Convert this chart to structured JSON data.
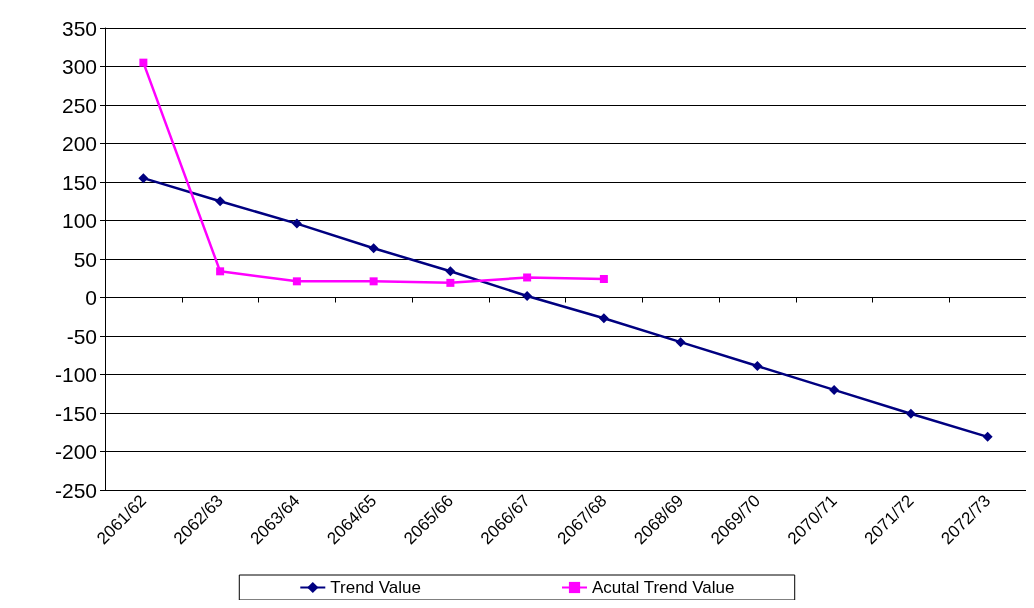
{
  "chart_data": {
    "type": "line",
    "categories": [
      "2061/62",
      "2062/63",
      "2063/64",
      "2064/65",
      "2065/66",
      "2066/67",
      "2067/68",
      "2068/69",
      "2069/70",
      "2070/71",
      "2071/72",
      "2072/73"
    ],
    "series": [
      {
        "name": "Trend Value",
        "color": "#000080",
        "marker": "diamond",
        "values": [
          155,
          125,
          96,
          64,
          34,
          2,
          -27,
          -58,
          -89,
          -120,
          -151,
          -181
        ]
      },
      {
        "name": "Acutal Trend Value",
        "color": "#ff00ff",
        "marker": "square",
        "values": [
          305,
          34,
          21,
          21,
          19,
          26,
          24,
          null,
          null,
          null,
          null,
          null
        ]
      }
    ],
    "ylim": [
      -250,
      350
    ],
    "yticks": [
      -250,
      -200,
      -150,
      -100,
      -50,
      0,
      50,
      100,
      150,
      200,
      250,
      300,
      350
    ],
    "grid": "y",
    "legend": "bottom",
    "line_style": "solid"
  }
}
